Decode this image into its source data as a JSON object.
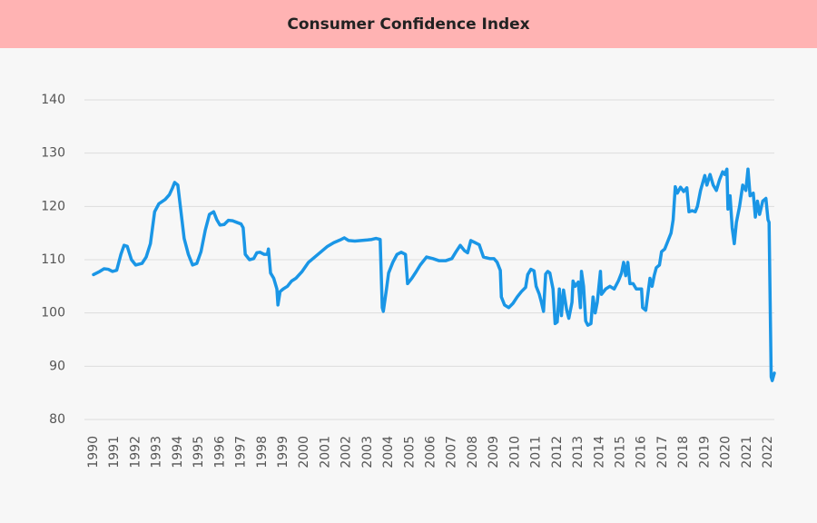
{
  "chart_data": {
    "type": "line",
    "title": "Consumer Confidence Index",
    "x": [
      1990.0,
      1990.3,
      1990.5,
      1990.7,
      1990.9,
      1991.1,
      1991.3,
      1991.45,
      1991.6,
      1991.8,
      1992.0,
      1992.3,
      1992.5,
      1992.7,
      1992.9,
      1993.1,
      1993.4,
      1993.6,
      1993.75,
      1993.85,
      1994.0,
      1994.15,
      1994.3,
      1994.5,
      1994.7,
      1994.9,
      1995.1,
      1995.3,
      1995.5,
      1995.7,
      1995.85,
      1996.0,
      1996.2,
      1996.4,
      1996.6,
      1996.8,
      1997.0,
      1997.1,
      1997.2,
      1997.4,
      1997.6,
      1997.75,
      1997.9,
      1998.1,
      1998.25,
      1998.3,
      1998.4,
      1998.55,
      1998.7,
      1998.75,
      1998.85,
      1999.0,
      1999.2,
      1999.4,
      1999.6,
      1999.9,
      2000.2,
      2000.5,
      2000.8,
      2001.1,
      2001.4,
      2001.7,
      2001.9,
      2002.1,
      2002.4,
      2002.7,
      2003.0,
      2003.2,
      2003.4,
      2003.6,
      2003.7,
      2003.75,
      2003.9,
      2004.0,
      2004.2,
      2004.4,
      2004.6,
      2004.8,
      2004.9,
      2005.1,
      2005.3,
      2005.5,
      2005.8,
      2006.1,
      2006.4,
      2006.7,
      2007.0,
      2007.2,
      2007.4,
      2007.6,
      2007.75,
      2007.9,
      2008.1,
      2008.3,
      2008.5,
      2008.8,
      2009.0,
      2009.15,
      2009.3,
      2009.35,
      2009.5,
      2009.7,
      2009.9,
      2010.1,
      2010.3,
      2010.5,
      2010.6,
      2010.75,
      2010.9,
      2011.0,
      2011.15,
      2011.25,
      2011.35,
      2011.45,
      2011.55,
      2011.65,
      2011.8,
      2011.9,
      2012.0,
      2012.1,
      2012.2,
      2012.3,
      2012.45,
      2012.55,
      2012.7,
      2012.75,
      2012.85,
      2013.0,
      2013.1,
      2013.15,
      2013.25,
      2013.35,
      2013.45,
      2013.6,
      2013.7,
      2013.8,
      2013.9,
      2014.05,
      2014.1,
      2014.3,
      2014.5,
      2014.7,
      2014.9,
      2015.05,
      2015.15,
      2015.25,
      2015.35,
      2015.45,
      2015.6,
      2015.75,
      2015.9,
      2016.0,
      2016.05,
      2016.2,
      2016.3,
      2016.4,
      2016.5,
      2016.6,
      2016.7,
      2016.85,
      2016.95,
      2017.1,
      2017.25,
      2017.4,
      2017.5,
      2017.6,
      2017.7,
      2017.85,
      2018.0,
      2018.15,
      2018.25,
      2018.4,
      2018.55,
      2018.65,
      2018.8,
      2019.0,
      2019.1,
      2019.25,
      2019.4,
      2019.55,
      2019.7,
      2019.85,
      2019.95,
      2020.05,
      2020.1,
      2020.2,
      2020.3,
      2020.4,
      2020.5,
      2020.65,
      2020.8,
      2020.95,
      2021.05,
      2021.15,
      2021.3,
      2021.4,
      2021.5,
      2021.6,
      2021.75,
      2021.9,
      2022.0,
      2022.05,
      2022.15,
      2022.2,
      2022.3
    ],
    "values": [
      107.2,
      107.8,
      108.3,
      108.2,
      107.8,
      108.0,
      111,
      112.7,
      112.5,
      110,
      109,
      109.3,
      110.5,
      113,
      119,
      120.5,
      121.3,
      122.2,
      123.5,
      124.5,
      124,
      119,
      114,
      111,
      109,
      109.3,
      111.5,
      115.5,
      118.5,
      119,
      117.5,
      116.5,
      116.6,
      117.4,
      117.3,
      117,
      116.7,
      116,
      111,
      110,
      110.2,
      111.3,
      111.4,
      111,
      111,
      112,
      107.5,
      106.5,
      104.5,
      101.5,
      104,
      104.5,
      105,
      106,
      106.5,
      107.8,
      109.5,
      110.5,
      111.5,
      112.5,
      113.2,
      113.7,
      114.1,
      113.6,
      113.5,
      113.6,
      113.7,
      113.8,
      114,
      113.8,
      101,
      100.3,
      104.5,
      107.5,
      109.5,
      111,
      111.4,
      111,
      105.5,
      106.5,
      107.7,
      109,
      110.5,
      110.2,
      109.8,
      109.8,
      110.2,
      111.5,
      112.7,
      111.7,
      111.3,
      113.6,
      113.2,
      112.8,
      110.5,
      110.2,
      110.2,
      109.5,
      108,
      103,
      101.5,
      101,
      101.8,
      103,
      104,
      104.8,
      107.2,
      108.2,
      107.9,
      105,
      103.5,
      102,
      100.3,
      107.3,
      107.8,
      107.5,
      104.5,
      98,
      98.3,
      104.5,
      99.5,
      104.3,
      100.5,
      99,
      102,
      106,
      105,
      105.8,
      101,
      107.8,
      105,
      98.5,
      97.7,
      98,
      103,
      100,
      102,
      107.8,
      103.5,
      104.5,
      105,
      104.5,
      106,
      107.5,
      109.5,
      107,
      109.5,
      105.5,
      105.5,
      104.5,
      104.5,
      104.5,
      101,
      100.5,
      103.5,
      106.5,
      105,
      107,
      108.5,
      109,
      111.5,
      112,
      113.5,
      115,
      117.5,
      123.7,
      122.5,
      123.6,
      122.8,
      123.5,
      119,
      119.2,
      119,
      120,
      123,
      125.8,
      124,
      126,
      124,
      123,
      125,
      126.5,
      126,
      127,
      119.5,
      122,
      116,
      113,
      117,
      120,
      124,
      123,
      127,
      122,
      122.5,
      118,
      121,
      118.5,
      121,
      121.5,
      117.5,
      117,
      88,
      87.3,
      88.7
    ],
    "color": "#1a96e6",
    "xlim": [
      1990,
      2022.3
    ],
    "xticks": [
      1990,
      1991,
      1992,
      1993,
      1994,
      1995,
      1996,
      1997,
      1998,
      1999,
      2000,
      2001,
      2002,
      2003,
      2004,
      2005,
      2006,
      2007,
      2008,
      2009,
      2010,
      2011,
      2012,
      2013,
      2014,
      2015,
      2016,
      2017,
      2018,
      2019,
      2020,
      2021,
      2022
    ],
    "ylim": [
      80,
      140
    ],
    "yticks": [
      80,
      90,
      100,
      110,
      120,
      130,
      140
    ],
    "grid": true
  }
}
